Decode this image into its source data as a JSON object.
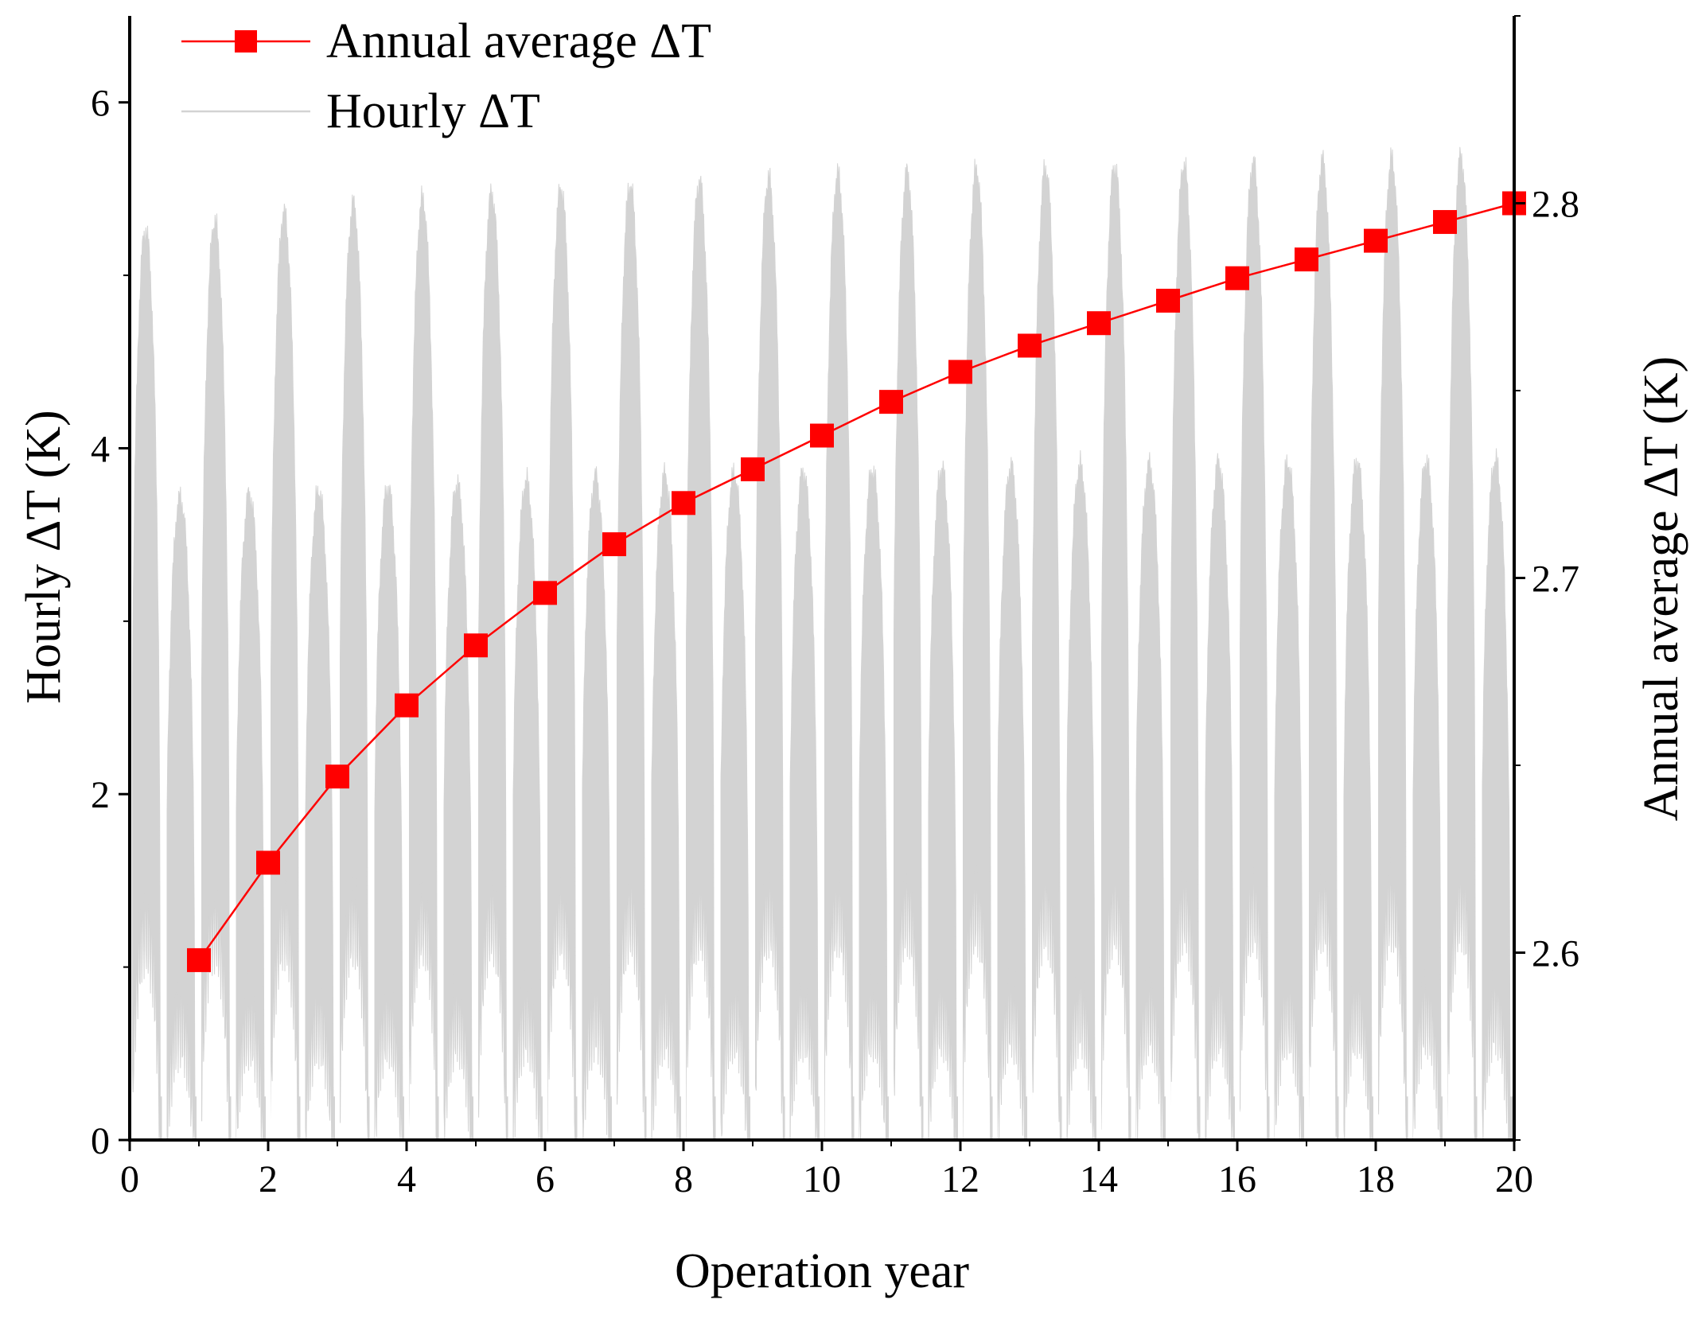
{
  "chart_data": {
    "type": "line",
    "xlabel": "Operation year",
    "ylabel_left": "Hourly ΔT (K)",
    "ylabel_right": "Annual average ΔT (K)",
    "xlim": [
      0,
      20
    ],
    "ylim_left": [
      0,
      6.5
    ],
    "ylim_right": [
      2.55,
      2.85
    ],
    "x_ticks": [
      0,
      2,
      4,
      6,
      8,
      10,
      12,
      14,
      16,
      18,
      20
    ],
    "x_tick_labels": [
      "0",
      "2",
      "4",
      "6",
      "8",
      "10",
      "12",
      "14",
      "16",
      "18",
      "20"
    ],
    "y_left_ticks": [
      0,
      2,
      4,
      6
    ],
    "y_left_tick_labels": [
      "0",
      "2",
      "4",
      "6"
    ],
    "y_right_ticks": [
      2.6,
      2.7,
      2.8
    ],
    "y_right_tick_labels": [
      "2.6",
      "2.7",
      "2.8"
    ],
    "legend_location": "top-left",
    "series": [
      {
        "name": "Annual average ΔT",
        "axis": "right",
        "color": "#ff0000",
        "marker": "square",
        "x": [
          1,
          2,
          3,
          4,
          5,
          6,
          7,
          8,
          9,
          10,
          11,
          12,
          13,
          14,
          15,
          16,
          17,
          18,
          19,
          20
        ],
        "values": [
          2.598,
          2.624,
          2.647,
          2.666,
          2.682,
          2.696,
          2.709,
          2.72,
          2.729,
          2.738,
          2.747,
          2.755,
          2.762,
          2.768,
          2.774,
          2.78,
          2.785,
          2.79,
          2.795,
          2.8
        ]
      },
      {
        "name": "Hourly ΔT",
        "axis": "left",
        "color": "#d3d3d3",
        "description_type": "oscillating",
        "year_peak_high": [
          5.25,
          5.3,
          5.35,
          5.4,
          5.43,
          5.46,
          5.49,
          5.51,
          5.53,
          5.55,
          5.57,
          5.58,
          5.6,
          5.61,
          5.62,
          5.63,
          5.64,
          5.65,
          5.66,
          5.67
        ],
        "year_peak_low": [
          3.7,
          3.72,
          3.74,
          3.76,
          3.78,
          3.8,
          3.82,
          3.83,
          3.84,
          3.85,
          3.86,
          3.87,
          3.88,
          3.89,
          3.89,
          3.9,
          3.9,
          3.91,
          3.91,
          3.92
        ]
      }
    ]
  }
}
